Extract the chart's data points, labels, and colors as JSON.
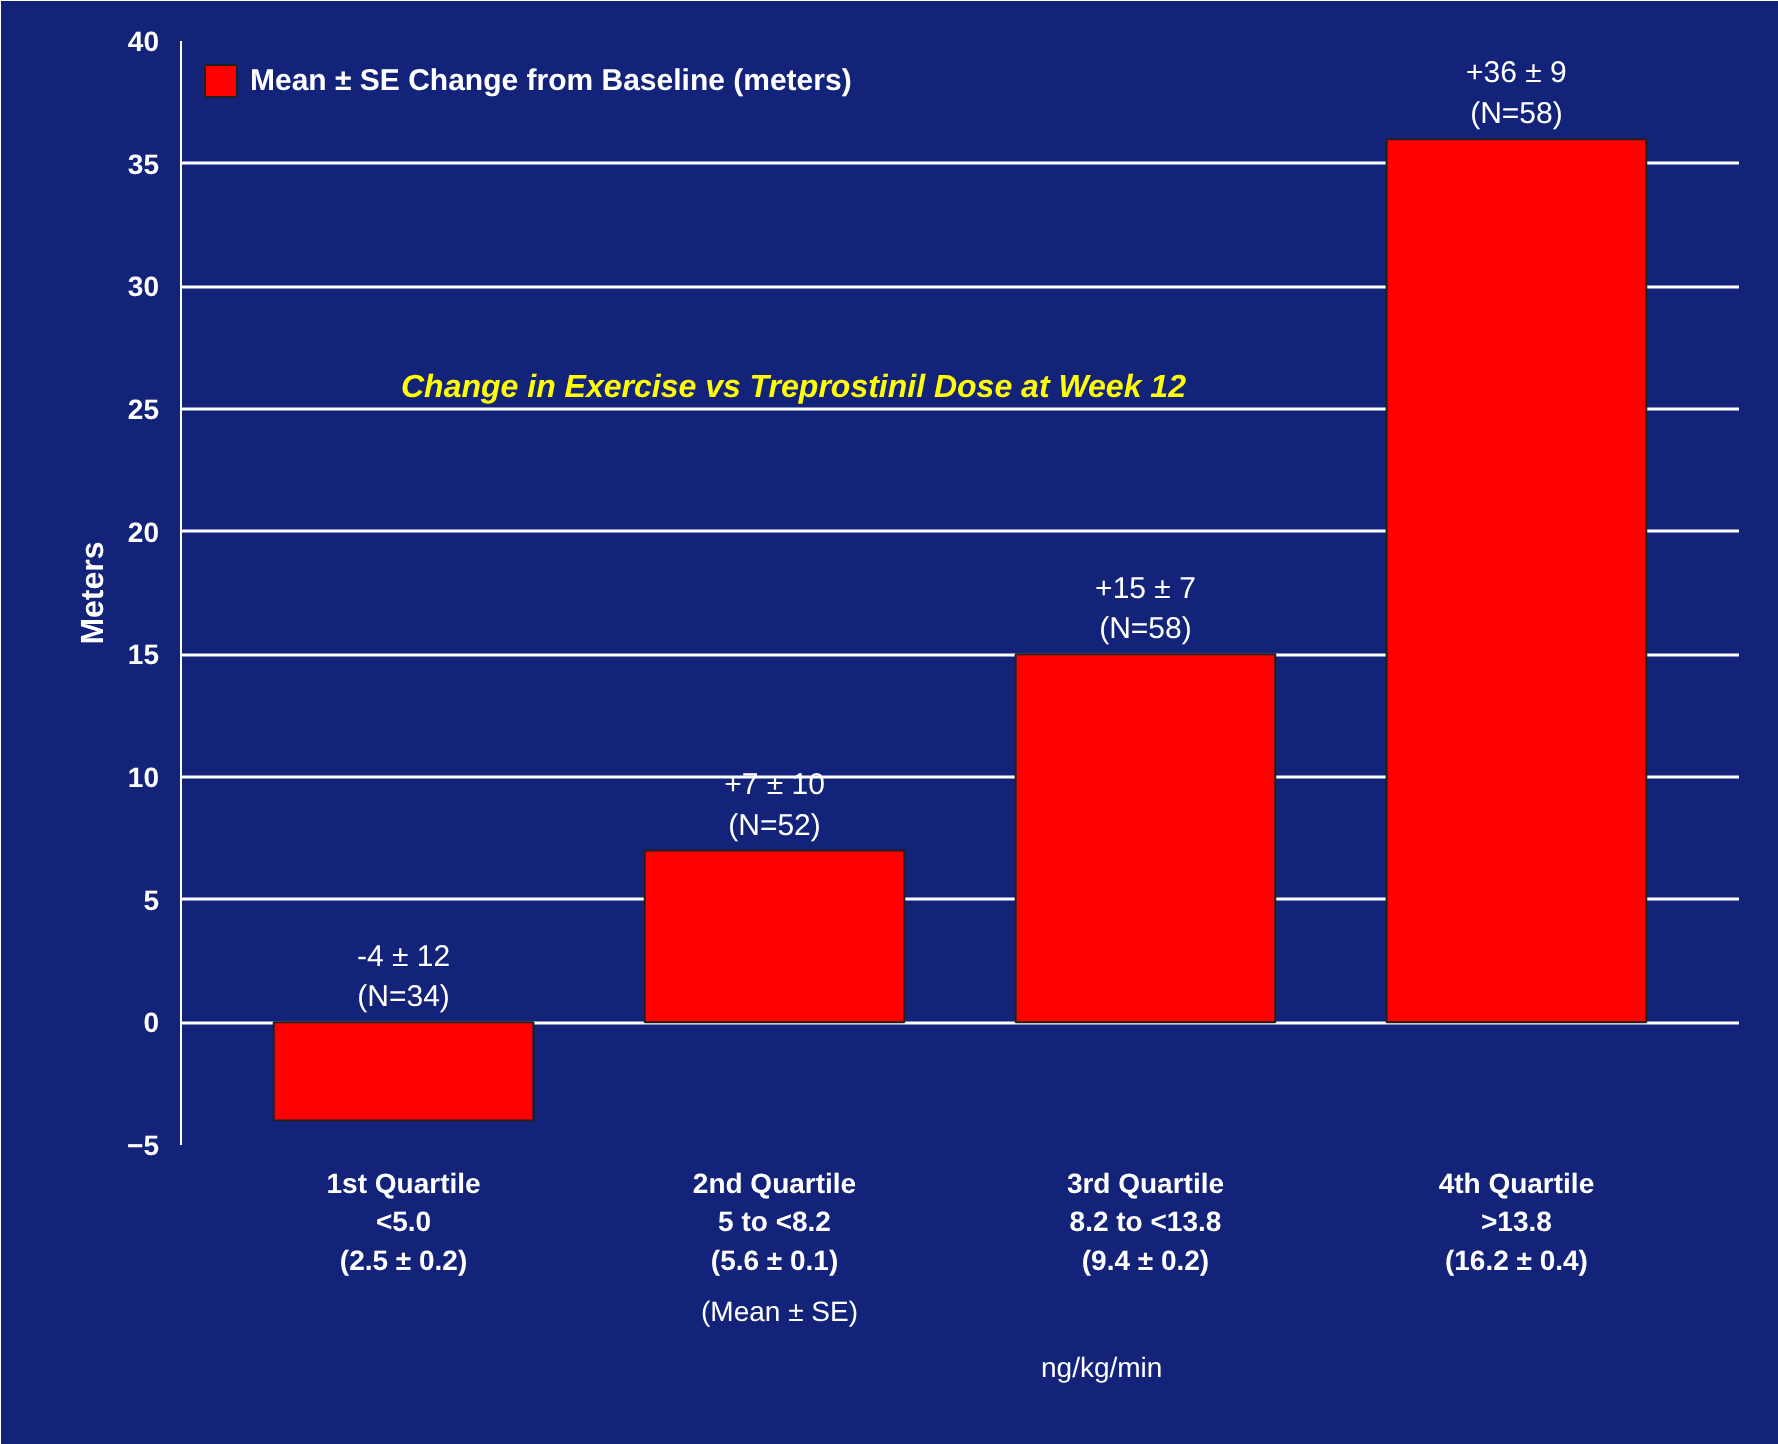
{
  "chart_data": {
    "type": "bar",
    "ylabel": "Meters",
    "categories": [
      "1st Quartile\n<5.0\n(2.5 ± 0.2)",
      "2nd Quartile\n5 to <8.2\n(5.6 ± 0.1)",
      "3rd Quartile\n8.2 to <13.8\n(9.4 ± 0.2)",
      "4th Quartile\n>13.8\n(16.2 ± 0.4)"
    ],
    "series": [
      {
        "name": "Mean ± SE Change from Baseline (meters)",
        "color": "#ff0000",
        "values": [
          -4,
          7,
          15,
          36
        ],
        "value_labels": [
          "-4 ± 12\n(N=34)",
          "+7 ± 10\n(N=52)",
          "+15 ± 7\n(N=58)",
          "+36 ± 9\n(N=58)"
        ]
      }
    ],
    "ylim": [
      -5,
      40
    ],
    "yticks": [
      -5,
      0,
      5,
      10,
      15,
      20,
      25,
      30,
      35,
      40
    ],
    "grid": "y",
    "legend": "top left",
    "annotations": [
      "Change in Exercise vs Treprostinil Dose at Week 12",
      "(Mean ± SE)",
      "ng/kg/min"
    ]
  }
}
